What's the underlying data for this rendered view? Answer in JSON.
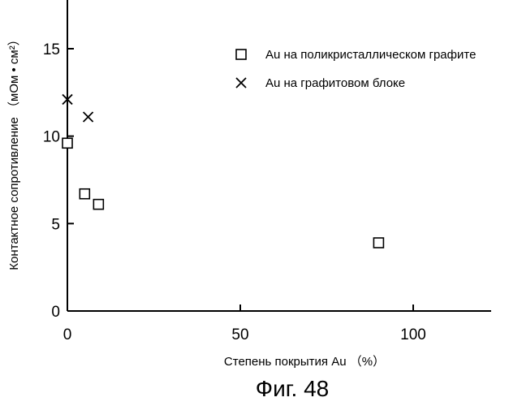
{
  "chart_data": {
    "type": "scatter",
    "xlabel": "Степень покрытия Au （%）",
    "ylabel": "Контактное сопротивление （мОм • см²）",
    "xlim": [
      0,
      120
    ],
    "ylim": [
      0,
      18
    ],
    "x_ticks": [
      {
        "value": 0,
        "label": "0"
      },
      {
        "value": 50,
        "label": "50"
      },
      {
        "value": 100,
        "label": "100"
      }
    ],
    "y_ticks": [
      {
        "value": 0,
        "label": "0"
      },
      {
        "value": 5,
        "label": "5"
      },
      {
        "value": 10,
        "label": "10"
      },
      {
        "value": 15,
        "label": "15"
      }
    ],
    "grid": false,
    "legend_position": "top-right",
    "series": [
      {
        "name": "Au на поликристаллическом графите",
        "marker": "square",
        "points": [
          {
            "x": 0,
            "y": 9.6
          },
          {
            "x": 5,
            "y": 6.7
          },
          {
            "x": 9,
            "y": 6.1
          },
          {
            "x": 90,
            "y": 3.9
          }
        ]
      },
      {
        "name": "Au на графитовом блоке",
        "marker": "cross",
        "points": [
          {
            "x": 0,
            "y": 12.1
          },
          {
            "x": 6,
            "y": 11.1
          }
        ]
      }
    ]
  },
  "caption": "Фиг. 48"
}
